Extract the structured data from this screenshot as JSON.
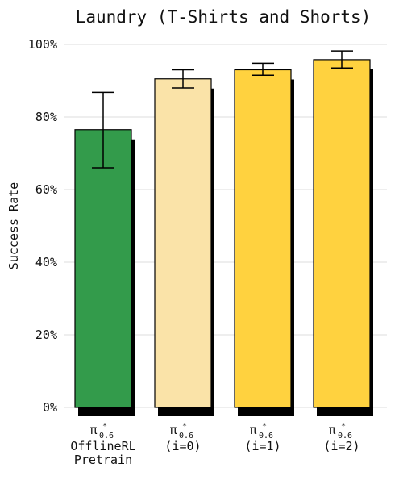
{
  "chart_data": {
    "type": "bar",
    "title": "Laundry (T-Shirts and Shorts)",
    "xlabel": "",
    "ylabel": "Success Rate",
    "ylim": [
      0,
      100
    ],
    "yticks": [
      0,
      20,
      40,
      60,
      80,
      100
    ],
    "ytick_labels": [
      "0%",
      "20%",
      "40%",
      "60%",
      "80%",
      "100%"
    ],
    "grid": "horizontal",
    "categories": [
      {
        "symbol": "π",
        "superscript": "*",
        "subscript": "0.6",
        "lines": [
          "OfflineRL",
          "Pretrain"
        ]
      },
      {
        "symbol": "π",
        "superscript": "*",
        "subscript": "0.6",
        "lines": [
          "(i=0)"
        ]
      },
      {
        "symbol": "π",
        "superscript": "*",
        "subscript": "0.6",
        "lines": [
          "(i=1)"
        ]
      },
      {
        "symbol": "π",
        "superscript": "*",
        "subscript": "0.6",
        "lines": [
          "(i=2)"
        ]
      }
    ],
    "values": [
      76.5,
      90.5,
      93.0,
      95.8
    ],
    "error_low": [
      66.0,
      88.0,
      91.5,
      93.5
    ],
    "error_high": [
      86.8,
      93.0,
      94.8,
      98.2
    ],
    "colors": [
      "#339b4b",
      "#fae3a8",
      "#ffd23f",
      "#ffd23f"
    ],
    "edge_color": "#000000",
    "shadow_color": "#000000"
  }
}
